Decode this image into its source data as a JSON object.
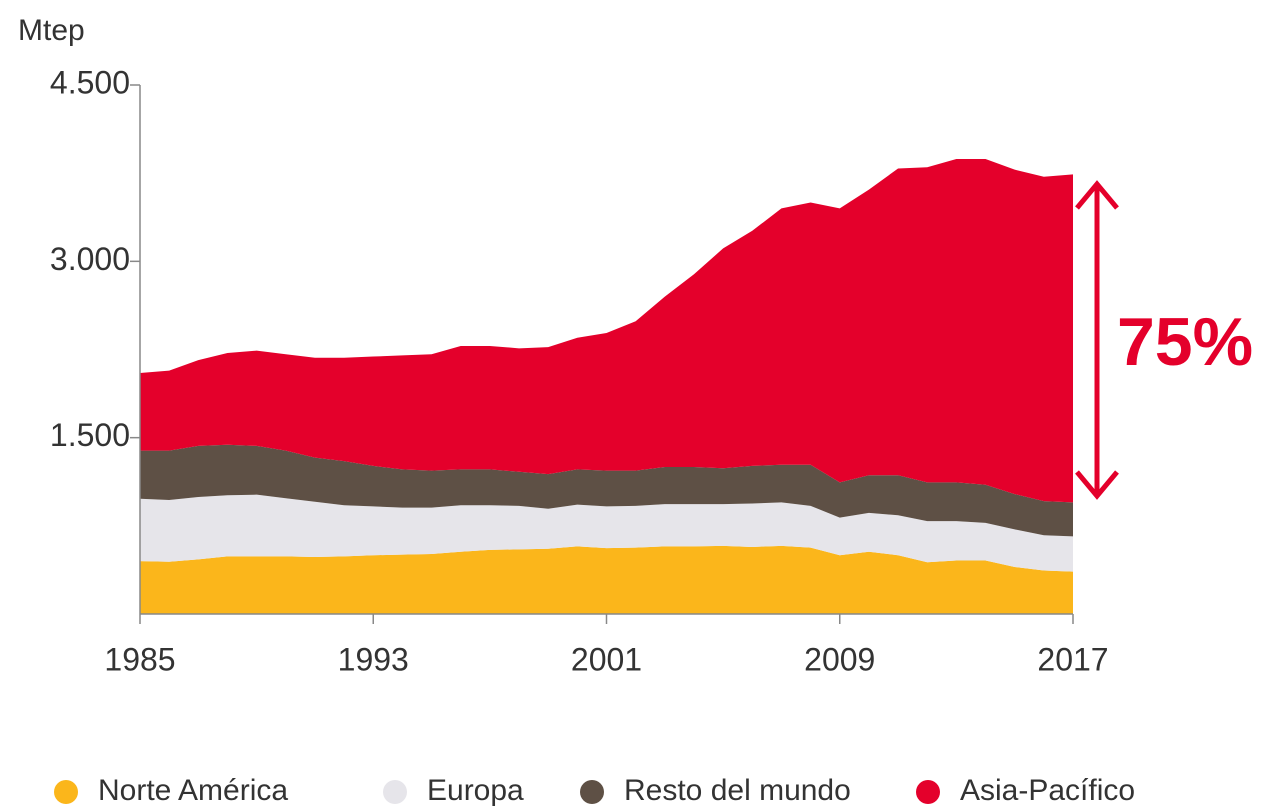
{
  "chart_data": {
    "type": "stacked_area",
    "y_axis_label": "Mtep",
    "annotation": "75%",
    "x": [
      1985,
      1986,
      1987,
      1988,
      1989,
      1990,
      1991,
      1992,
      1993,
      1994,
      1995,
      1996,
      1997,
      1998,
      1999,
      2000,
      2001,
      2002,
      2003,
      2004,
      2005,
      2006,
      2007,
      2008,
      2009,
      2010,
      2011,
      2012,
      2013,
      2014,
      2015,
      2016,
      2017
    ],
    "series": [
      {
        "name": "Norte América",
        "color": "#fbb61b",
        "values": [
          450,
          445,
          465,
          490,
          490,
          490,
          485,
          490,
          500,
          505,
          510,
          530,
          545,
          550,
          555,
          575,
          560,
          565,
          575,
          575,
          580,
          570,
          580,
          565,
          500,
          530,
          500,
          440,
          455,
          455,
          400,
          370,
          360
        ]
      },
      {
        "name": "Europa",
        "color": "#e6e5ea",
        "values": [
          530,
          525,
          530,
          520,
          525,
          495,
          470,
          435,
          415,
          400,
          395,
          395,
          380,
          370,
          340,
          355,
          355,
          355,
          360,
          360,
          355,
          370,
          370,
          355,
          320,
          330,
          340,
          350,
          335,
          320,
          320,
          300,
          300
        ]
      },
      {
        "name": "Resto del mundo",
        "color": "#5e5045",
        "values": [
          410,
          420,
          435,
          430,
          415,
          405,
          375,
          375,
          345,
          325,
          315,
          305,
          305,
          290,
          295,
          300,
          305,
          300,
          315,
          315,
          305,
          320,
          320,
          350,
          300,
          320,
          340,
          330,
          330,
          325,
          300,
          290,
          290
        ]
      },
      {
        "name": "Asia-Pacífico",
        "color": "#e4002b",
        "values": [
          660,
          680,
          730,
          780,
          810,
          820,
          850,
          880,
          930,
          970,
          990,
          1050,
          1050,
          1050,
          1080,
          1120,
          1170,
          1270,
          1450,
          1640,
          1870,
          2000,
          2180,
          2230,
          2330,
          2430,
          2610,
          2680,
          2750,
          2770,
          2760,
          2760,
          2790
        ]
      }
    ],
    "xlim": [
      1985,
      2017
    ],
    "xticks": [
      1985,
      1993,
      2001,
      2009,
      2017
    ],
    "ylim": [
      0,
      4500
    ],
    "yticks": [
      {
        "value": 1500,
        "label": "1.500"
      },
      {
        "value": 3000,
        "label": "3.000"
      },
      {
        "value": 4500,
        "label": "4.500"
      }
    ],
    "legend": "bottom"
  }
}
